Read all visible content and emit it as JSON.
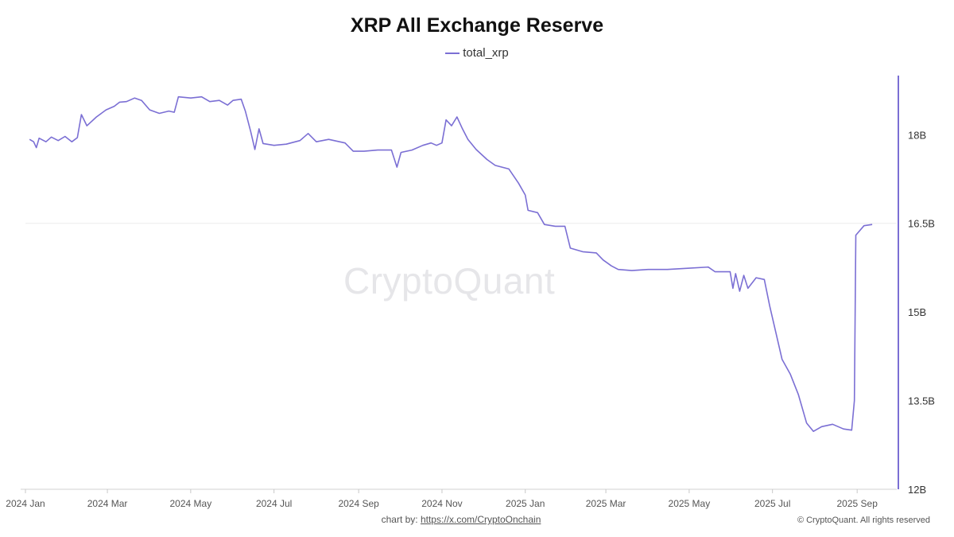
{
  "chart_data": {
    "type": "line",
    "title": "XRP All Exchange Reserve",
    "xlabel": "",
    "ylabel": "",
    "x_range": [
      "2024-01-01",
      "2025-09-30"
    ],
    "ylim": [
      12,
      19
    ],
    "y_unit": "B",
    "y_ticks": [
      {
        "value": 12,
        "label": "12B"
      },
      {
        "value": 13.5,
        "label": "13.5B"
      },
      {
        "value": 15,
        "label": "15B"
      },
      {
        "value": 16.5,
        "label": "16.5B"
      },
      {
        "value": 18,
        "label": "18B"
      }
    ],
    "x_ticks": [
      {
        "date": "2024-01-01",
        "label": "2024 Jan"
      },
      {
        "date": "2024-03-01",
        "label": "2024 Mar"
      },
      {
        "date": "2024-05-01",
        "label": "2024 May"
      },
      {
        "date": "2024-07-01",
        "label": "2024 Jul"
      },
      {
        "date": "2024-09-01",
        "label": "2024 Sep"
      },
      {
        "date": "2024-11-01",
        "label": "2024 Nov"
      },
      {
        "date": "2025-01-01",
        "label": "2025 Jan"
      },
      {
        "date": "2025-03-01",
        "label": "2025 Mar"
      },
      {
        "date": "2025-05-01",
        "label": "2025 May"
      },
      {
        "date": "2025-07-01",
        "label": "2025 Jul"
      },
      {
        "date": "2025-09-01",
        "label": "2025 Sep"
      }
    ],
    "reference_line": 16.5,
    "legend_position": "top-center",
    "grid": false,
    "series": [
      {
        "name": "total_xrp",
        "color": "#7b6fd4",
        "points": [
          [
            "2024-01-04",
            17.92
          ],
          [
            "2024-01-07",
            17.88
          ],
          [
            "2024-01-09",
            17.78
          ],
          [
            "2024-01-11",
            17.94
          ],
          [
            "2024-01-16",
            17.88
          ],
          [
            "2024-01-20",
            17.96
          ],
          [
            "2024-01-25",
            17.9
          ],
          [
            "2024-01-30",
            17.97
          ],
          [
            "2024-02-04",
            17.88
          ],
          [
            "2024-02-08",
            17.95
          ],
          [
            "2024-02-11",
            18.34
          ],
          [
            "2024-02-15",
            18.15
          ],
          [
            "2024-02-22",
            18.3
          ],
          [
            "2024-02-29",
            18.42
          ],
          [
            "2024-03-06",
            18.48
          ],
          [
            "2024-03-10",
            18.55
          ],
          [
            "2024-03-15",
            18.56
          ],
          [
            "2024-03-21",
            18.62
          ],
          [
            "2024-03-26",
            18.58
          ],
          [
            "2024-04-01",
            18.42
          ],
          [
            "2024-04-08",
            18.36
          ],
          [
            "2024-04-15",
            18.4
          ],
          [
            "2024-04-19",
            18.38
          ],
          [
            "2024-04-22",
            18.64
          ],
          [
            "2024-05-01",
            18.62
          ],
          [
            "2024-05-09",
            18.64
          ],
          [
            "2024-05-15",
            18.56
          ],
          [
            "2024-05-22",
            18.58
          ],
          [
            "2024-05-28",
            18.5
          ],
          [
            "2024-06-01",
            18.58
          ],
          [
            "2024-06-07",
            18.6
          ],
          [
            "2024-06-10",
            18.4
          ],
          [
            "2024-06-14",
            18.05
          ],
          [
            "2024-06-17",
            17.75
          ],
          [
            "2024-06-20",
            18.1
          ],
          [
            "2024-06-23",
            17.85
          ],
          [
            "2024-07-01",
            17.82
          ],
          [
            "2024-07-10",
            17.84
          ],
          [
            "2024-07-20",
            17.9
          ],
          [
            "2024-07-26",
            18.02
          ],
          [
            "2024-08-01",
            17.88
          ],
          [
            "2024-08-10",
            17.92
          ],
          [
            "2024-08-22",
            17.86
          ],
          [
            "2024-08-28",
            17.72
          ],
          [
            "2024-09-05",
            17.72
          ],
          [
            "2024-09-15",
            17.74
          ],
          [
            "2024-09-25",
            17.74
          ],
          [
            "2024-09-29",
            17.45
          ],
          [
            "2024-10-02",
            17.7
          ],
          [
            "2024-10-10",
            17.74
          ],
          [
            "2024-10-18",
            17.82
          ],
          [
            "2024-10-24",
            17.86
          ],
          [
            "2024-10-28",
            17.82
          ],
          [
            "2024-11-01",
            17.86
          ],
          [
            "2024-11-04",
            18.25
          ],
          [
            "2024-11-08",
            18.15
          ],
          [
            "2024-11-12",
            18.3
          ],
          [
            "2024-11-16",
            18.1
          ],
          [
            "2024-11-20",
            17.92
          ],
          [
            "2024-11-26",
            17.75
          ],
          [
            "2024-12-04",
            17.58
          ],
          [
            "2024-12-10",
            17.48
          ],
          [
            "2024-12-20",
            17.42
          ],
          [
            "2024-12-27",
            17.18
          ],
          [
            "2025-01-01",
            16.98
          ],
          [
            "2025-01-03",
            16.72
          ],
          [
            "2025-01-10",
            16.68
          ],
          [
            "2025-01-15",
            16.48
          ],
          [
            "2025-01-23",
            16.45
          ],
          [
            "2025-01-30",
            16.45
          ],
          [
            "2025-02-03",
            16.08
          ],
          [
            "2025-02-12",
            16.02
          ],
          [
            "2025-02-22",
            16.0
          ],
          [
            "2025-02-27",
            15.88
          ],
          [
            "2025-03-05",
            15.78
          ],
          [
            "2025-03-10",
            15.72
          ],
          [
            "2025-03-20",
            15.7
          ],
          [
            "2025-04-01",
            15.72
          ],
          [
            "2025-04-15",
            15.72
          ],
          [
            "2025-04-30",
            15.74
          ],
          [
            "2025-05-15",
            15.76
          ],
          [
            "2025-05-20",
            15.68
          ],
          [
            "2025-05-31",
            15.68
          ],
          [
            "2025-06-02",
            15.4
          ],
          [
            "2025-06-04",
            15.65
          ],
          [
            "2025-06-07",
            15.35
          ],
          [
            "2025-06-10",
            15.62
          ],
          [
            "2025-06-13",
            15.4
          ],
          [
            "2025-06-19",
            15.58
          ],
          [
            "2025-06-25",
            15.55
          ],
          [
            "2025-06-29",
            15.1
          ],
          [
            "2025-07-03",
            14.7
          ],
          [
            "2025-07-08",
            14.2
          ],
          [
            "2025-07-14",
            13.95
          ],
          [
            "2025-07-20",
            13.6
          ],
          [
            "2025-07-26",
            13.12
          ],
          [
            "2025-07-31",
            12.98
          ],
          [
            "2025-08-06",
            13.06
          ],
          [
            "2025-08-14",
            13.1
          ],
          [
            "2025-08-22",
            13.02
          ],
          [
            "2025-08-28",
            13.0
          ],
          [
            "2025-08-30",
            13.5
          ],
          [
            "2025-08-31",
            16.3
          ],
          [
            "2025-09-06",
            16.46
          ],
          [
            "2025-09-12",
            16.48
          ]
        ]
      }
    ]
  },
  "watermark": "CryptoQuant",
  "footer": {
    "credit_prefix": "chart by: ",
    "credit_link": "https://x.com/CryptoOnchain",
    "copyright": "© CryptoQuant. All rights reserved"
  }
}
